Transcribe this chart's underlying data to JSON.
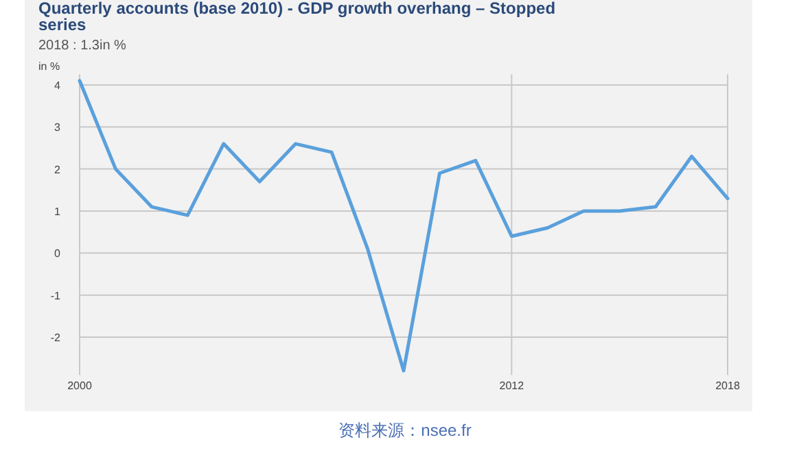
{
  "chart_data": {
    "type": "line",
    "title": "Quarterly accounts (base 2010) - GDP growth overhang – Stopped series",
    "subtitle": "2018 : 1.3in %",
    "ylabel": "in %",
    "annotations": [
      "资料来源：nsee.fr"
    ],
    "x": [
      2000,
      2001,
      2002,
      2003,
      2004,
      2005,
      2006,
      2007,
      2008,
      2009,
      2010,
      2011,
      2012,
      2013,
      2014,
      2015,
      2016,
      2017,
      2018
    ],
    "series": [
      {
        "color": "#5aa0dc",
        "values": [
          4.1,
          2.0,
          1.1,
          0.9,
          2.6,
          1.7,
          2.6,
          2.4,
          0.1,
          -2.8,
          1.9,
          2.2,
          0.4,
          0.6,
          1.0,
          1.0,
          1.1,
          2.3,
          1.3
        ]
      }
    ],
    "xlim": [
      2000,
      2018
    ],
    "xticks": [
      2000,
      2012,
      2018
    ],
    "ylim": [
      -2.9,
      4.25
    ],
    "yticks": [
      -2,
      -1,
      0,
      1,
      2,
      3,
      4
    ],
    "grid": true,
    "marker": "none",
    "line_style": "solid"
  }
}
